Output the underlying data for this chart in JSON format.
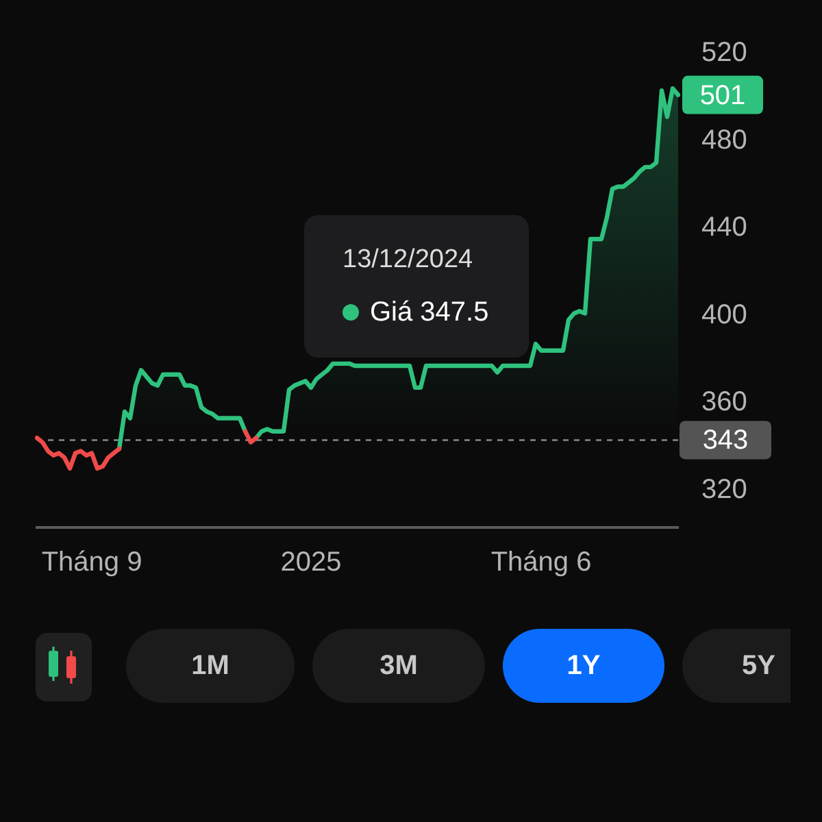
{
  "chart_data": {
    "type": "line",
    "categories": [
      null,
      null,
      null,
      null,
      null,
      null,
      null,
      null,
      null,
      null,
      "Tháng 9",
      null,
      null,
      null,
      null,
      null,
      null,
      null,
      null,
      null,
      null,
      null,
      null,
      null,
      null,
      null,
      null,
      null,
      null,
      null,
      null,
      null,
      null,
      null,
      null,
      null,
      null,
      null,
      null,
      null,
      null,
      null,
      null,
      null,
      null,
      null,
      null,
      null,
      null,
      null,
      "2025",
      null,
      null,
      null,
      null,
      null,
      null,
      null,
      null,
      null,
      null,
      null,
      null,
      null,
      null,
      null,
      null,
      null,
      null,
      null,
      null,
      null,
      null,
      null,
      null,
      null,
      null,
      null,
      null,
      null,
      null,
      null,
      null,
      null,
      null,
      null,
      null,
      null,
      null,
      null,
      null,
      null,
      "Tháng 6",
      null,
      null,
      null,
      null,
      null,
      null,
      null,
      null,
      null,
      null,
      null,
      null,
      null,
      null,
      null,
      null,
      null,
      null,
      null,
      null,
      null,
      null,
      null,
      null,
      null
    ],
    "series": [
      {
        "type": "area",
        "color": "#2fc27e",
        "values": [
          null,
          null,
          null,
          null,
          null,
          null,
          null,
          null,
          null,
          null,
          null,
          null,
          null,
          null,
          null,
          339,
          356,
          353,
          368,
          375,
          372,
          369,
          368,
          373,
          373,
          373,
          373,
          368,
          368,
          367,
          358,
          356,
          355,
          353,
          353,
          353,
          353,
          353,
          347,
          null,
          344,
          347,
          348,
          347,
          347,
          347,
          366,
          368,
          369,
          370,
          367,
          371,
          373,
          375,
          378,
          378,
          378,
          378,
          377,
          377,
          377,
          377,
          377,
          377,
          377,
          377,
          377,
          377,
          377,
          367,
          367,
          377,
          377,
          377,
          377,
          377,
          377,
          377,
          377,
          377,
          377,
          377,
          377,
          377,
          374,
          377,
          377,
          377,
          377,
          377,
          377,
          387,
          384,
          384,
          384,
          384,
          384,
          398,
          401,
          402,
          401,
          435,
          435,
          435,
          445,
          458,
          459,
          459,
          461,
          463,
          466,
          468,
          468,
          470,
          503,
          491,
          504,
          501
        ]
      },
      {
        "color": "#f04a4a",
        "values": [
          344,
          342,
          338,
          336,
          337,
          335,
          330,
          337,
          338,
          336,
          337,
          330,
          331,
          335,
          337,
          339,
          null,
          null,
          null,
          null,
          null,
          null,
          null,
          null,
          null,
          null,
          null,
          null,
          null,
          null,
          null,
          null,
          null,
          null,
          null,
          null,
          null,
          null,
          347,
          342,
          344,
          null,
          null,
          null,
          null,
          null,
          null,
          null,
          null,
          null,
          null,
          null,
          null,
          null,
          null,
          null,
          null,
          null,
          null,
          null,
          null,
          null,
          null,
          null,
          null,
          null,
          null,
          null,
          null,
          null,
          null,
          null,
          null,
          null,
          null,
          null,
          null,
          null,
          null,
          null,
          null,
          null,
          null,
          null,
          null,
          null,
          null,
          null,
          null,
          null,
          null,
          null,
          null,
          null,
          null,
          null,
          null,
          null,
          null,
          null,
          null,
          null,
          null,
          null,
          null,
          null,
          null,
          null,
          null,
          null,
          null,
          null,
          null,
          null,
          null,
          null,
          null,
          null
        ]
      }
    ],
    "ylim": [
      303,
      520
    ],
    "yticks": [
      320,
      360,
      400,
      440,
      480,
      520
    ],
    "ref_lines": [
      {
        "axis": "y",
        "value": 343,
        "label": "343",
        "color": "#8a8a8a",
        "line_style": "dashed"
      }
    ],
    "annotations": [
      "13/12/2024",
      "Giá 347.5",
      "501",
      "1M",
      "3M",
      "1Y",
      "5Y"
    ]
  }
}
